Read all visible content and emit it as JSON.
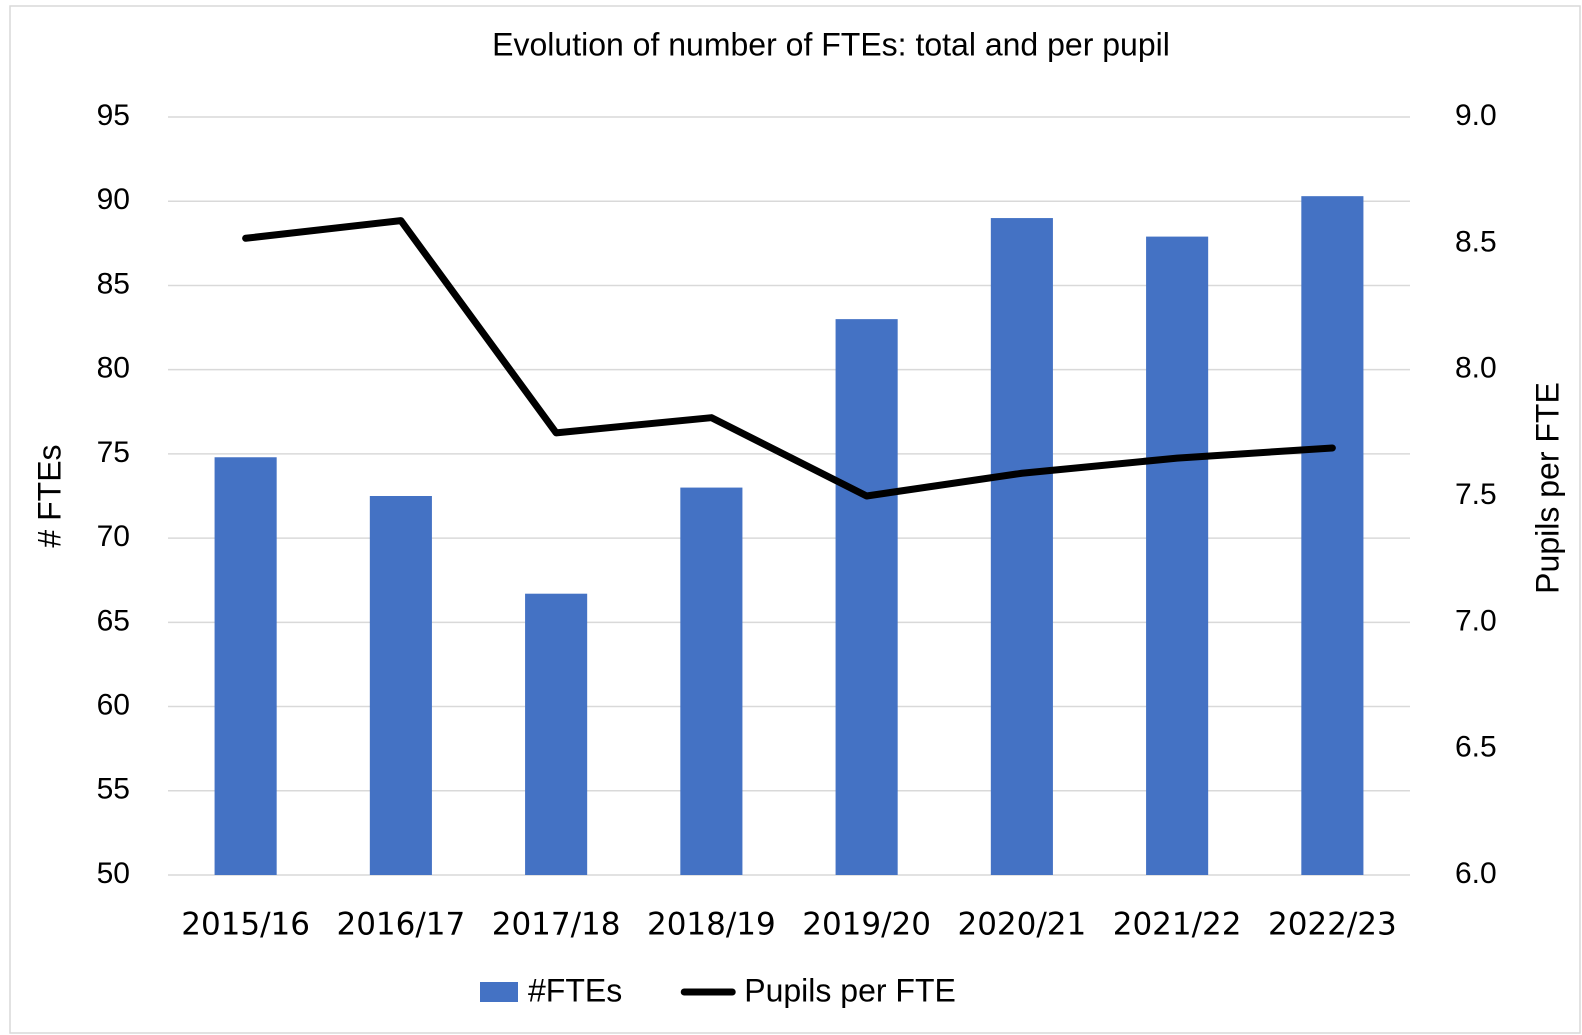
{
  "chart_data": {
    "type": "bar-line",
    "title": "Evolution of number of FTEs: total and per pupil",
    "ylabel": "# FTEs",
    "y2label": "Pupils per FTE",
    "categories": [
      "2015/16",
      "2016/17",
      "2017/18",
      "2018/19",
      "2019/20",
      "2020/21",
      "2021/22",
      "2022/23"
    ],
    "series": [
      {
        "name": "#FTEs",
        "type": "bar",
        "color": "#4472c4",
        "values": [
          74.8,
          72.5,
          66.7,
          73.0,
          83.0,
          89.0,
          87.9,
          90.3
        ]
      },
      {
        "name": "Pupils per FTE",
        "type": "line",
        "axis": "y2",
        "color": "#000000",
        "values": [
          8.52,
          8.59,
          7.75,
          7.81,
          7.5,
          7.59,
          7.65,
          7.69
        ]
      }
    ],
    "ylim": [
      50,
      95
    ],
    "yticks": [
      50,
      55,
      60,
      65,
      70,
      75,
      80,
      85,
      90,
      95
    ],
    "y2lim": [
      6,
      9
    ],
    "y2ticks": [
      {
        "value": 6,
        "label": "6.0"
      },
      {
        "value": 6.5,
        "label": "6.5"
      },
      {
        "value": 7,
        "label": "7.0"
      },
      {
        "value": 7.5,
        "label": "7.5"
      },
      {
        "value": 8,
        "label": "8.0"
      },
      {
        "value": 8.5,
        "label": "8.5"
      },
      {
        "value": 9,
        "label": "9.0"
      }
    ],
    "grid": true,
    "legend": "bottom"
  }
}
